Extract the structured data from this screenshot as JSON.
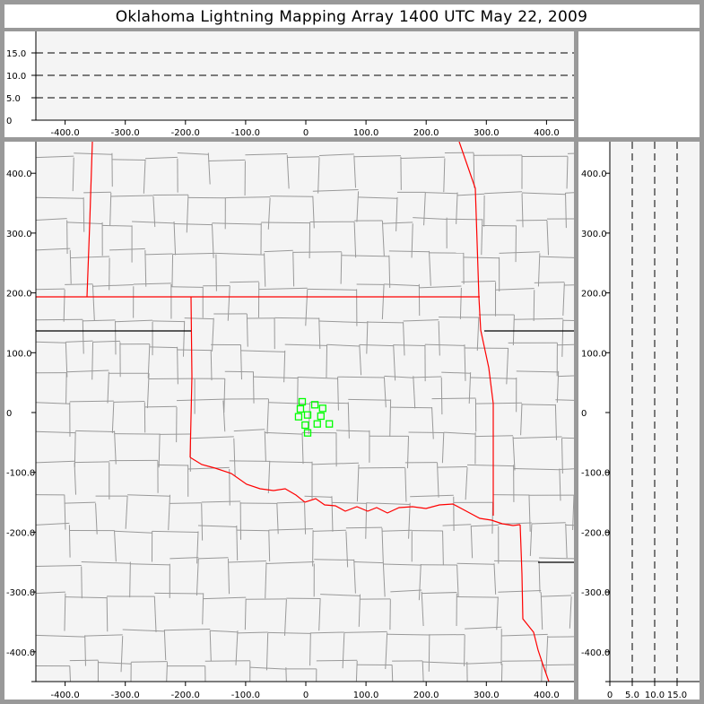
{
  "title": "Oklahoma Lightning Mapping Array   1400 UTC  May 22, 2009",
  "colors": {
    "frame": "#999999",
    "plot_bg": "#f4f4f4",
    "state_border": "#ff0000",
    "county_border": "#999999",
    "station": "#00ff00"
  },
  "map": {
    "x_range_km": [
      -450,
      450
    ],
    "y_range_km": [
      -450,
      450
    ],
    "x_ticks": [
      -400,
      -300,
      -200,
      -100,
      0,
      100,
      200,
      300,
      400
    ],
    "x_tick_labels": [
      "-400.0",
      "-300.0",
      "-200.0",
      "-100.0",
      "0",
      "100.0",
      "200.0",
      "300.0",
      "400.0"
    ],
    "y_ticks": [
      400,
      300,
      200,
      100,
      0,
      -100,
      -200,
      -300,
      -400
    ],
    "y_tick_labels": [
      "400.0",
      "300.0",
      "200.0",
      "100.0",
      "0",
      "-100.0",
      "-200.0",
      "-300.0",
      "-400.0"
    ]
  },
  "altitude": {
    "range_km": [
      0,
      20
    ],
    "ticks": [
      0,
      5,
      10,
      15
    ],
    "tick_labels": [
      "0",
      "5.0",
      "10.0",
      "15.0"
    ],
    "dashed_lines": [
      5,
      10,
      15
    ]
  },
  "stations_km": [
    [
      -6,
      18
    ],
    [
      -9,
      6
    ],
    [
      15,
      13
    ],
    [
      28,
      7
    ],
    [
      -12,
      -7
    ],
    [
      3,
      -4
    ],
    [
      25,
      -6
    ],
    [
      -1,
      -21
    ],
    [
      19,
      -19
    ],
    [
      39,
      -19
    ],
    [
      3,
      -34
    ]
  ]
}
